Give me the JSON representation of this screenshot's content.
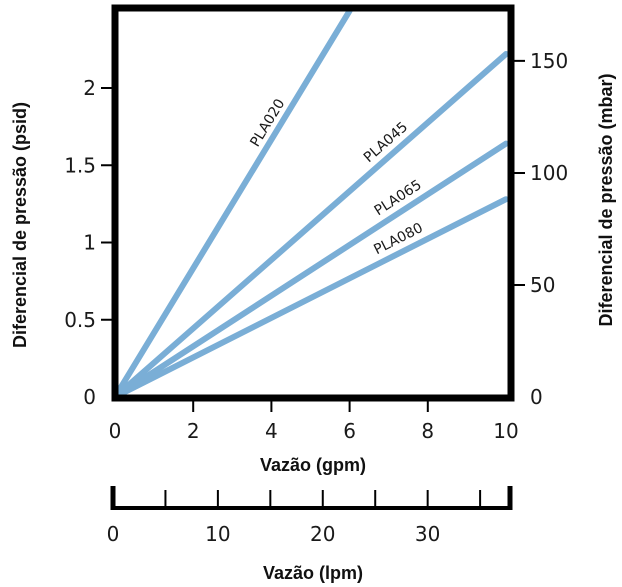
{
  "chart_data": {
    "type": "line",
    "x_label": "Vazão (gpm)",
    "x_ticks": [
      0,
      2,
      4,
      6,
      8,
      10
    ],
    "x_range": [
      0,
      10
    ],
    "y_left_label": "Diferencial de pressão (psid)",
    "y_left_ticks": [
      "0",
      "0.5",
      "1",
      "1.5",
      "2"
    ],
    "y_left_tick_values": [
      0,
      0.5,
      1,
      1.5,
      2
    ],
    "y_left_range": [
      0,
      2.5
    ],
    "y_right_label": "Diferencial de pressão (mbar)",
    "y_right_ticks": [
      "0",
      "50",
      "100",
      "150"
    ],
    "y_right_tick_values": [
      0,
      50,
      100,
      150
    ],
    "y_right_range": [
      0,
      172.4
    ],
    "secondary_x_label": "Vazão (lpm)",
    "secondary_x_ticks": [
      "0",
      "10",
      "20",
      "30"
    ],
    "secondary_x_tick_values": [
      0,
      10,
      20,
      30
    ],
    "secondary_x_range": [
      0,
      37.85
    ],
    "series_color": "#7aaed6",
    "series": [
      {
        "name": "PLA020",
        "points": [
          [
            0,
            0
          ],
          [
            6.0,
            2.5
          ]
        ]
      },
      {
        "name": "PLA045",
        "points": [
          [
            0,
            0
          ],
          [
            10,
            2.22
          ]
        ]
      },
      {
        "name": "PLA065",
        "points": [
          [
            0,
            0
          ],
          [
            10,
            1.64
          ]
        ]
      },
      {
        "name": "PLA080",
        "points": [
          [
            0,
            0
          ],
          [
            10,
            1.28
          ]
        ]
      }
    ],
    "grid": false,
    "legend": "inline labels on lines"
  }
}
